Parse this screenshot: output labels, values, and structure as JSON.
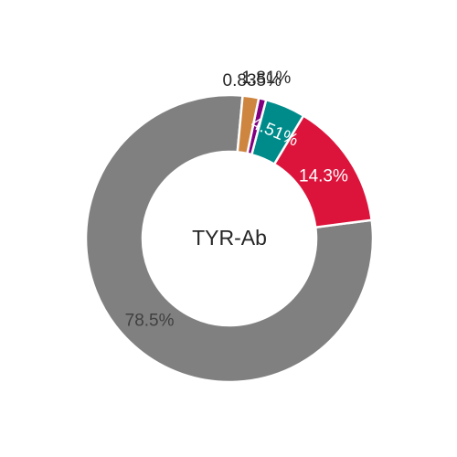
{
  "chart_data": {
    "type": "pie",
    "donut": true,
    "center_label": "TYR-Ab",
    "slices": [
      {
        "label": "78.5%",
        "value": 78.5,
        "color": "#808080",
        "label_color": "#404040"
      },
      {
        "label": "14.3%",
        "value": 14.3,
        "color": "#dc143c",
        "label_color": "#ffffff"
      },
      {
        "label": "4.51%",
        "value": 4.51,
        "color": "#008b8b",
        "label_color": "#ffffff"
      },
      {
        "label": "0.835%",
        "value": 0.835,
        "color": "#800080",
        "label_color": "#262626"
      },
      {
        "label": "1.81%",
        "value": 1.81,
        "color": "#cd853f",
        "label_color": "#262626"
      }
    ]
  }
}
